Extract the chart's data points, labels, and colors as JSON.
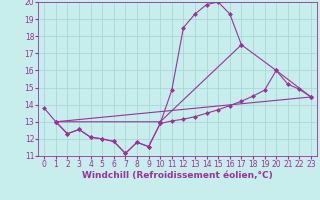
{
  "xlabel": "Windchill (Refroidissement éolien,°C)",
  "bg_color": "#c8eded",
  "grid_color": "#a8d8d8",
  "line_color": "#993399",
  "xlim": [
    -0.5,
    23.5
  ],
  "ylim": [
    11,
    20
  ],
  "xticks": [
    0,
    1,
    2,
    3,
    4,
    5,
    6,
    7,
    8,
    9,
    10,
    11,
    12,
    13,
    14,
    15,
    16,
    17,
    18,
    19,
    20,
    21,
    22,
    23
  ],
  "yticks": [
    11,
    12,
    13,
    14,
    15,
    16,
    17,
    18,
    19,
    20
  ],
  "line1_x": [
    0,
    1,
    2,
    3,
    4,
    5,
    6,
    7,
    8,
    9,
    10,
    11,
    12,
    13,
    14,
    15,
    16,
    17
  ],
  "line1_y": [
    13.8,
    13.0,
    12.3,
    12.55,
    12.1,
    12.0,
    11.85,
    11.15,
    11.8,
    11.55,
    12.9,
    14.85,
    18.5,
    19.3,
    19.85,
    20.0,
    19.3,
    17.5
  ],
  "line2_x": [
    1,
    2,
    3,
    4,
    5,
    6,
    7,
    8,
    9,
    10,
    11,
    12,
    13,
    14,
    15,
    16,
    17,
    18,
    19,
    20,
    21,
    22,
    23
  ],
  "line2_y": [
    13.0,
    12.3,
    12.55,
    12.1,
    12.0,
    11.85,
    11.15,
    11.8,
    11.55,
    12.9,
    13.05,
    13.15,
    13.3,
    13.5,
    13.7,
    13.95,
    14.2,
    14.5,
    14.85,
    16.0,
    15.2,
    14.9,
    14.45
  ],
  "line3_x": [
    1,
    10,
    17,
    20,
    23
  ],
  "line3_y": [
    13.0,
    13.0,
    17.5,
    16.0,
    14.45
  ],
  "line4_x": [
    1,
    23
  ],
  "line4_y": [
    13.0,
    14.45
  ],
  "marker_size": 2.5,
  "font_size": 6.5,
  "tick_font_size": 5.5
}
